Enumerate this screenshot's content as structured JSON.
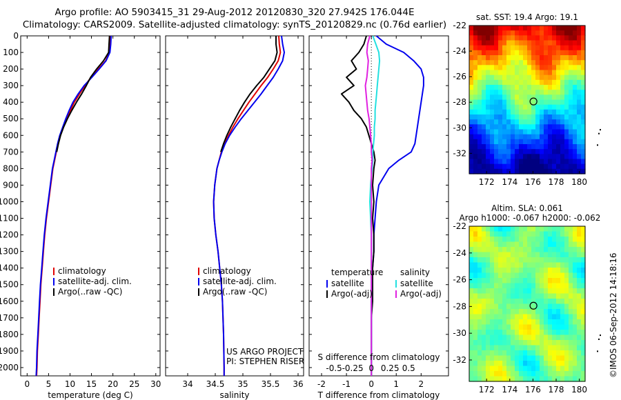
{
  "header": {
    "line1": "Argo profile: AO 5903415_31 29-Aug-2012 20120830_320 27.942S 176.044E",
    "line2": "Climatology: CARS2009. Satellite-adjusted climatology: synTS_20120829.nc (0.76d earlier)"
  },
  "credit": "©IMOS 06-Sep-2012 14:18:16",
  "colors": {
    "climatology": "#e00000",
    "satellite": "#0000ee",
    "argo": "#000000",
    "salinity_satellite": "#22e0e0",
    "salinity_argo": "#e020e0"
  },
  "chart_data": [
    {
      "id": "temperature",
      "type": "line",
      "xlabel": "temperature (deg C)",
      "xticks": [
        0,
        5,
        10,
        15,
        20,
        25,
        30
      ],
      "xlim": [
        -1.5,
        31
      ],
      "yticks": [
        0,
        100,
        200,
        300,
        400,
        500,
        600,
        700,
        800,
        900,
        1000,
        1100,
        1200,
        1300,
        1400,
        1500,
        1600,
        1700,
        1800,
        1900,
        2000
      ],
      "ylim": [
        2050,
        0
      ],
      "legend": [
        "climatology",
        "satellite-adj. clim.",
        "Argo(..raw -QC)"
      ],
      "depth": [
        0,
        50,
        100,
        150,
        200,
        250,
        300,
        350,
        400,
        450,
        500,
        550,
        600,
        650,
        700,
        750,
        800,
        900,
        1000,
        1100,
        1200,
        1300,
        1400,
        1500,
        1600,
        1700,
        1800,
        1900,
        2000,
        2050
      ],
      "series": [
        {
          "name": "climatology",
          "values": [
            19.4,
            19.3,
            19.2,
            18.3,
            16.6,
            14.9,
            13.5,
            12.2,
            11.0,
            10.1,
            9.2,
            8.4,
            7.7,
            7.2,
            6.8,
            6.4,
            6.0,
            5.5,
            5.0,
            4.5,
            4.1,
            3.8,
            3.5,
            3.2,
            3.0,
            2.8,
            2.6,
            2.4,
            2.3,
            2.2
          ]
        },
        {
          "name": "satellite-adj. clim.",
          "values": [
            19.6,
            19.5,
            19.3,
            18.4,
            16.8,
            15.1,
            13.3,
            11.9,
            10.7,
            9.8,
            9.0,
            8.3,
            7.6,
            7.1,
            6.7,
            6.3,
            5.9,
            5.4,
            4.9,
            4.4,
            4.0,
            3.7,
            3.4,
            3.1,
            2.9,
            2.7,
            2.5,
            2.3,
            2.2,
            2.1
          ]
        },
        {
          "name": "Argo(..raw -QC)",
          "values": [
            19.2,
            19.1,
            19.0,
            17.8,
            16.2,
            14.8,
            13.8,
            12.7,
            11.5,
            10.4,
            9.4,
            8.5,
            7.8,
            7.3,
            6.9,
            null,
            null,
            null,
            null,
            null,
            null,
            null,
            null,
            null,
            null,
            null,
            null,
            null,
            null,
            null
          ]
        }
      ]
    },
    {
      "id": "salinity",
      "type": "line",
      "xlabel": "salinity",
      "xticks": [
        34,
        34.5,
        35,
        35.5,
        36
      ],
      "xlim": [
        33.6,
        36.1
      ],
      "yticks": [
        0,
        100,
        200,
        300,
        400,
        500,
        600,
        700,
        800,
        900,
        1000,
        1100,
        1200,
        1300,
        1400,
        1500,
        1600,
        1700,
        1800,
        1900,
        2000
      ],
      "ylim": [
        2050,
        0
      ],
      "legend": [
        "climatology",
        "satellite-adj. clim.",
        "Argo(..raw -QC)"
      ],
      "annotation": [
        "US ARGO PROJECT",
        "PI: STEPHEN RISER"
      ],
      "depth": [
        0,
        50,
        100,
        150,
        200,
        250,
        300,
        350,
        400,
        450,
        500,
        550,
        600,
        650,
        700,
        750,
        800,
        900,
        1000,
        1100,
        1200,
        1300,
        1400,
        1500,
        1600,
        1700,
        1800,
        1900,
        2000,
        2050
      ],
      "series": [
        {
          "name": "climatology",
          "values": [
            35.65,
            35.66,
            35.68,
            35.64,
            35.55,
            35.45,
            35.33,
            35.22,
            35.11,
            35.01,
            34.91,
            34.82,
            34.74,
            34.67,
            34.61,
            34.57,
            34.53,
            34.49,
            34.47,
            34.48,
            34.51,
            34.55,
            34.58,
            34.61,
            34.63,
            34.64,
            34.65,
            34.655,
            34.66,
            34.66
          ]
        },
        {
          "name": "satellite-adj. clim.",
          "values": [
            35.7,
            35.72,
            35.75,
            35.72,
            35.64,
            35.55,
            35.44,
            35.33,
            35.21,
            35.09,
            34.97,
            34.86,
            34.76,
            34.68,
            34.62,
            34.57,
            34.53,
            34.49,
            34.47,
            34.48,
            34.51,
            34.55,
            34.58,
            34.61,
            34.63,
            34.64,
            34.65,
            34.655,
            34.66,
            34.66
          ]
        },
        {
          "name": "Argo(..raw -QC)",
          "values": [
            35.6,
            35.6,
            35.62,
            35.58,
            35.48,
            35.38,
            35.25,
            35.13,
            35.03,
            34.94,
            34.86,
            34.78,
            34.71,
            34.65,
            34.6,
            null,
            null,
            null,
            null,
            null,
            null,
            null,
            null,
            null,
            null,
            null,
            null,
            null,
            null,
            null
          ]
        }
      ]
    },
    {
      "id": "differences",
      "type": "line",
      "xlabel": "T difference from climatology",
      "xlabel_top": "S difference from climatology",
      "xticks": [
        -2,
        -1,
        0,
        1,
        2
      ],
      "xticks_salinity": [
        -0.5,
        -0.25,
        0,
        0.25,
        0.5
      ],
      "xlim": [
        -2.5,
        3.1
      ],
      "yticks": [
        0,
        100,
        200,
        300,
        400,
        500,
        600,
        700,
        800,
        900,
        1000,
        1100,
        1200,
        1300,
        1400,
        1500,
        1600,
        1700,
        1800,
        1900,
        2000
      ],
      "ylim": [
        2050,
        0
      ],
      "legend_groups": [
        {
          "title": "temperature",
          "items": [
            "satellite",
            "Argo(-adj)"
          ]
        },
        {
          "title": "salinity",
          "items": [
            "satellite",
            "Argo(-adj)"
          ]
        }
      ],
      "depth": [
        0,
        50,
        100,
        150,
        200,
        250,
        300,
        350,
        400,
        450,
        500,
        550,
        600,
        650,
        700,
        750,
        800,
        900,
        1000,
        1100,
        1200,
        1300,
        1400,
        1500,
        1600,
        1700,
        1800,
        1900,
        2000,
        2050
      ],
      "series": [
        {
          "name": "temperature satellite",
          "values": [
            0.2,
            0.6,
            1.3,
            1.7,
            2.0,
            2.1,
            2.1,
            2.05,
            2.0,
            1.95,
            1.9,
            1.85,
            1.8,
            1.75,
            1.6,
            1.1,
            0.7,
            0.3,
            0.2,
            0.15,
            0.1,
            0.1,
            0.05,
            0.05,
            0.0,
            0.0,
            0.0,
            0.0,
            0.0,
            0.0
          ]
        },
        {
          "name": "temperature Argo(-adj)",
          "values": [
            -0.2,
            -0.3,
            -0.5,
            -0.8,
            -0.6,
            -1.0,
            -0.7,
            -1.2,
            -0.9,
            -0.7,
            -0.4,
            -0.2,
            -0.1,
            0.0,
            0.1,
            0.15,
            0.1,
            0.05,
            0.1,
            0.05,
            0.1,
            0.1,
            0.05,
            0.05,
            0.05,
            0.0,
            0.0,
            0.0,
            0.0,
            0.0
          ]
        },
        {
          "name": "salinity satellite",
          "values": [
            0.02,
            0.06,
            0.1,
            0.11,
            0.1,
            0.09,
            0.08,
            0.07,
            0.06,
            0.05,
            0.05,
            0.04,
            0.04,
            0.03,
            0.02,
            0.02,
            0.01,
            -0.01,
            -0.02,
            -0.01,
            0.0,
            0.0,
            0.0,
            0.0,
            0.0,
            0.0,
            0.0,
            0.0,
            0.0,
            0.0
          ]
        },
        {
          "name": "salinity Argo(-adj)",
          "values": [
            -0.02,
            -0.05,
            -0.06,
            -0.04,
            -0.05,
            -0.06,
            -0.08,
            -0.07,
            -0.06,
            -0.05,
            -0.03,
            -0.02,
            -0.01,
            0.0,
            0.0,
            0.01,
            0.0,
            0.0,
            0.0,
            0.0,
            0.0,
            0.0,
            0.0,
            0.0,
            0.0,
            0.0,
            0.0,
            0.0,
            0.0,
            0.0
          ]
        }
      ]
    },
    {
      "id": "sst-map",
      "type": "heatmap",
      "title": "sat. SST: 19.4  Argo: 19.1",
      "xticks": [
        172,
        174,
        176,
        178,
        180
      ],
      "yticks": [
        -22,
        -24,
        -26,
        -28,
        -30,
        -32
      ],
      "xlim": [
        170.5,
        180.5
      ],
      "ylim": [
        -33.6,
        -22
      ],
      "marker": {
        "lon": 176.044,
        "lat": -27.942
      }
    },
    {
      "id": "sla-map",
      "type": "heatmap",
      "title": [
        "Altim. SLA: 0.061",
        "Argo h1000: -0.067 h2000: -0.062"
      ],
      "xticks": [
        172,
        174,
        176,
        178,
        180
      ],
      "yticks": [
        -22,
        -24,
        -26,
        -28,
        -30,
        -32
      ],
      "xlim": [
        170.5,
        180.5
      ],
      "ylim": [
        -33.6,
        -22
      ],
      "marker": {
        "lon": 176.044,
        "lat": -27.942
      }
    }
  ]
}
